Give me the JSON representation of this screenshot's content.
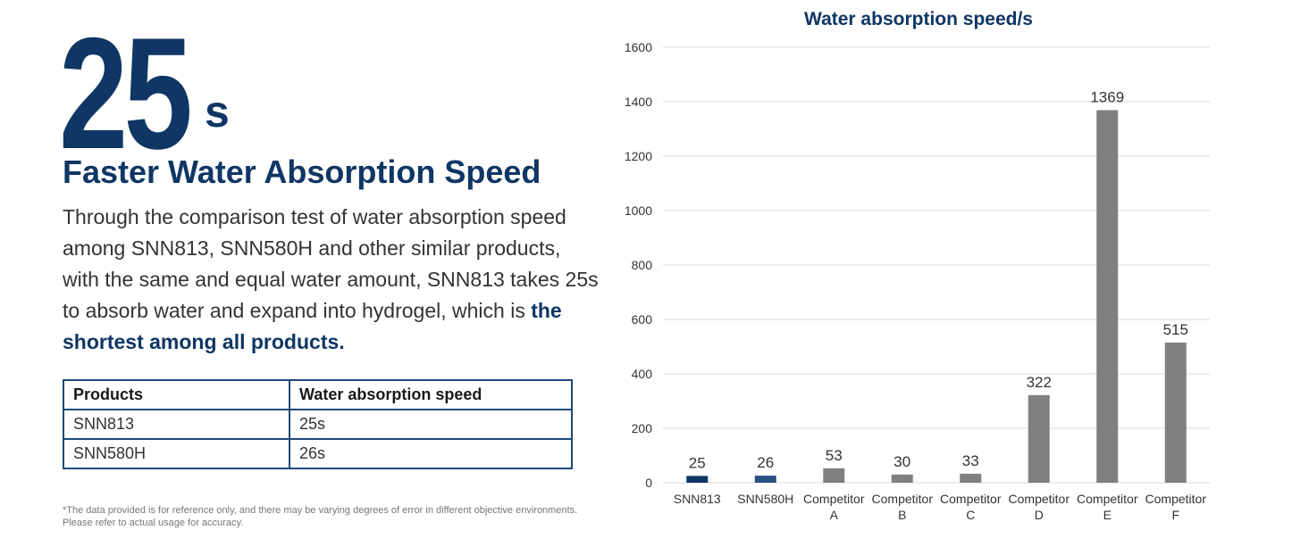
{
  "hero": {
    "value": "25",
    "unit": "s",
    "headline": "Faster Water Absorption Speed",
    "body": "Through the comparison test of water absorption speed among SNN813, SNN580H and other similar products, with the same and equal water amount, SNN813 takes 25s to absorb water and expand into hydrogel, which is ",
    "body_highlight": "the shortest among all products."
  },
  "table": {
    "headers": [
      "Products",
      "Water absorption speed"
    ],
    "rows": [
      [
        "SNN813",
        "25s"
      ],
      [
        "SNN580H",
        "26s"
      ]
    ]
  },
  "note": "*The data provided is for reference only, and there may be varying degrees of error in different objective environments. Please refer to actual usage for accuracy.",
  "colors": {
    "navy": "#0f3664",
    "steel_blue": "#2b5282",
    "gray": "#808080",
    "grid": "#d9d9d9"
  },
  "chart_data": {
    "type": "bar",
    "title": "Water absorption speed/s",
    "categories": [
      [
        "SNN813"
      ],
      [
        "SNN580H"
      ],
      [
        "Competitor",
        "A"
      ],
      [
        "Competitor",
        "B"
      ],
      [
        "Competitor",
        "C"
      ],
      [
        "Competitor",
        "D"
      ],
      [
        "Competitor",
        "E"
      ],
      [
        "Competitor",
        "F"
      ]
    ],
    "values": [
      25,
      26,
      53,
      30,
      33,
      322,
      1369,
      515
    ],
    "bar_colors": [
      "#0f3664",
      "#2b5282",
      "#808080",
      "#808080",
      "#808080",
      "#808080",
      "#808080",
      "#808080"
    ],
    "ylim": [
      0,
      1600
    ],
    "yticks": [
      0,
      200,
      400,
      600,
      800,
      1000,
      1200,
      1400,
      1600
    ],
    "grid": true,
    "data_labels": true
  }
}
